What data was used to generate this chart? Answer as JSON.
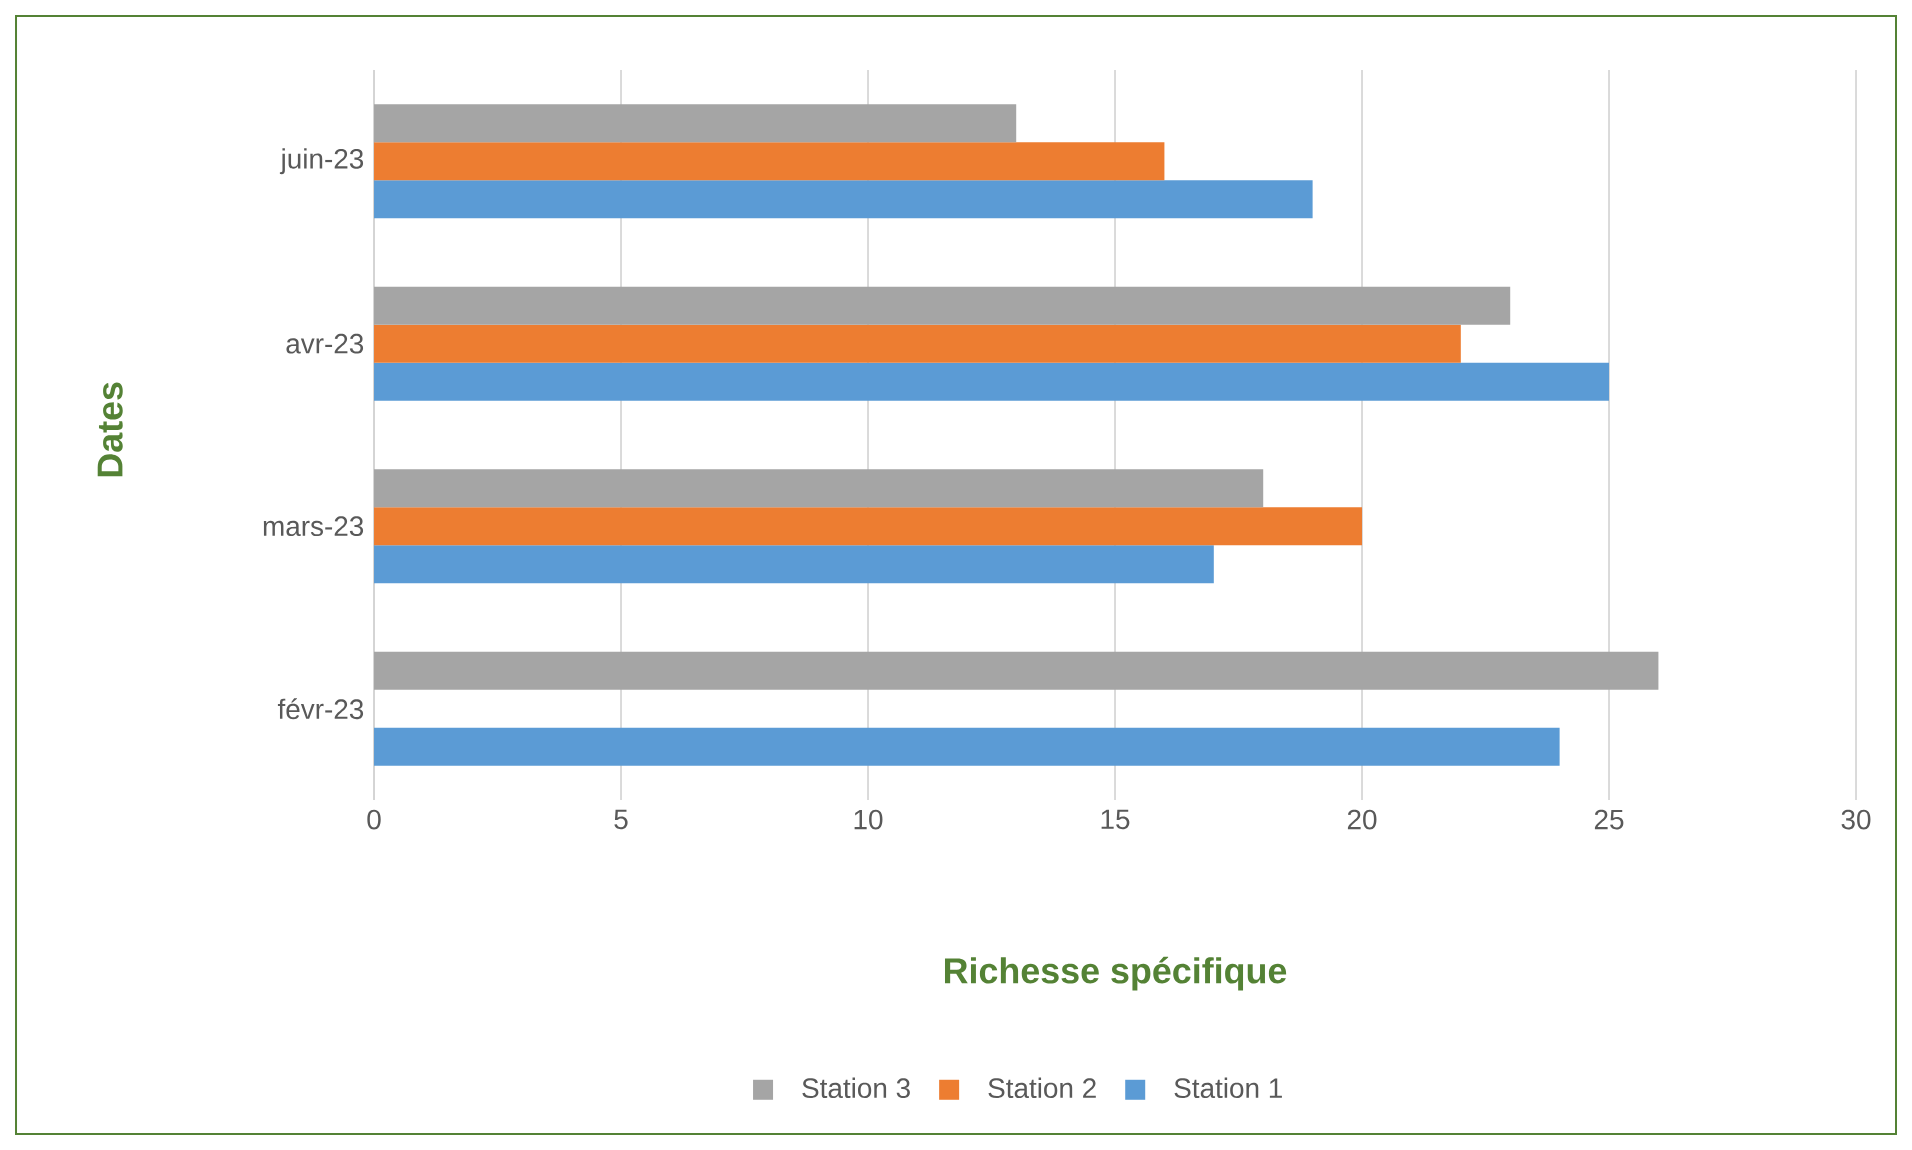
{
  "chart_data": {
    "type": "bar",
    "orientation": "horizontal",
    "xlabel": "Richesse spécifique",
    "ylabel": "Dates",
    "categories": [
      "juin-23",
      "avr-23",
      "mars-23",
      "févr-23"
    ],
    "series": [
      {
        "name": "Station 1",
        "color": "#5b9bd5",
        "values": [
          19,
          25,
          17,
          24
        ]
      },
      {
        "name": "Station 2",
        "color": "#ed7d31",
        "values": [
          16,
          22,
          20,
          null
        ]
      },
      {
        "name": "Station 3",
        "color": "#a5a5a5",
        "values": [
          13,
          23,
          18,
          26
        ]
      }
    ],
    "xlim": [
      0,
      30
    ],
    "xticks": [
      0,
      5,
      10,
      15,
      20,
      25,
      30
    ],
    "grid": "x",
    "legend": "bottom"
  }
}
